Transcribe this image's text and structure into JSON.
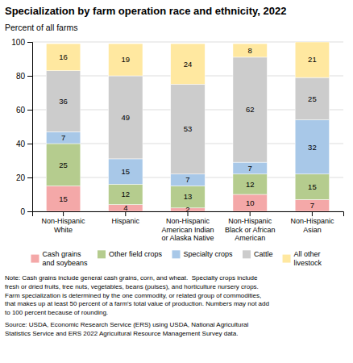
{
  "chart_data": {
    "type": "bar",
    "stacked": true,
    "data_labels": true,
    "grid": true,
    "legend": "bottom",
    "title": "Specialization by farm operation race and ethnicity, 2022",
    "ylabel": "Percent of all farms",
    "categories": [
      "Non-Hispanic\nWhite",
      "Hispanic",
      "Non-Hispanic\nAmerican Indian\nor Alaska Native",
      "Non-Hispanic\nBlack or African\nAmerican",
      "Non-Hispanic\nAsian"
    ],
    "series": [
      {
        "name": "Cash grains\nand soybeans",
        "color": "#F4A8A8",
        "values": [
          15,
          4,
          2,
          10,
          7
        ]
      },
      {
        "name": "Other field crops",
        "color": "#B5CC8E",
        "values": [
          25,
          12,
          13,
          12,
          15
        ]
      },
      {
        "name": "Specialty crops",
        "color": "#A8C8E8",
        "values": [
          7,
          15,
          7,
          7,
          32
        ]
      },
      {
        "name": "Cattle",
        "color": "#CCCCCC",
        "values": [
          36,
          49,
          53,
          62,
          25
        ]
      },
      {
        "name": "All other\nlivestock",
        "color": "#FFE8A0",
        "values": [
          16,
          19,
          24,
          8,
          21
        ]
      }
    ],
    "ylim": [
      0,
      100
    ],
    "yticks": [
      0,
      20,
      40,
      60,
      80,
      100
    ],
    "annotations": [
      "Note: Cash grains include general cash grains, corn, and wheat.  Specialty crops include\nfresh or dried fruits, tree nuts, vegetables, beans (pulses), and horticulture nursery crops.\nFarm specialization is determined by the one commodity, or related group of commodities,\nthat makes up at least 50 percent of a farm's total value of production. Numbers may not add\nto 100 percent because of rounding.",
      "Source: USDA, Economic Research Service (ERS) using USDA, National Agricultural\nStatistics Service and ERS 2022 Agricultural Resource Management Survey data."
    ]
  }
}
